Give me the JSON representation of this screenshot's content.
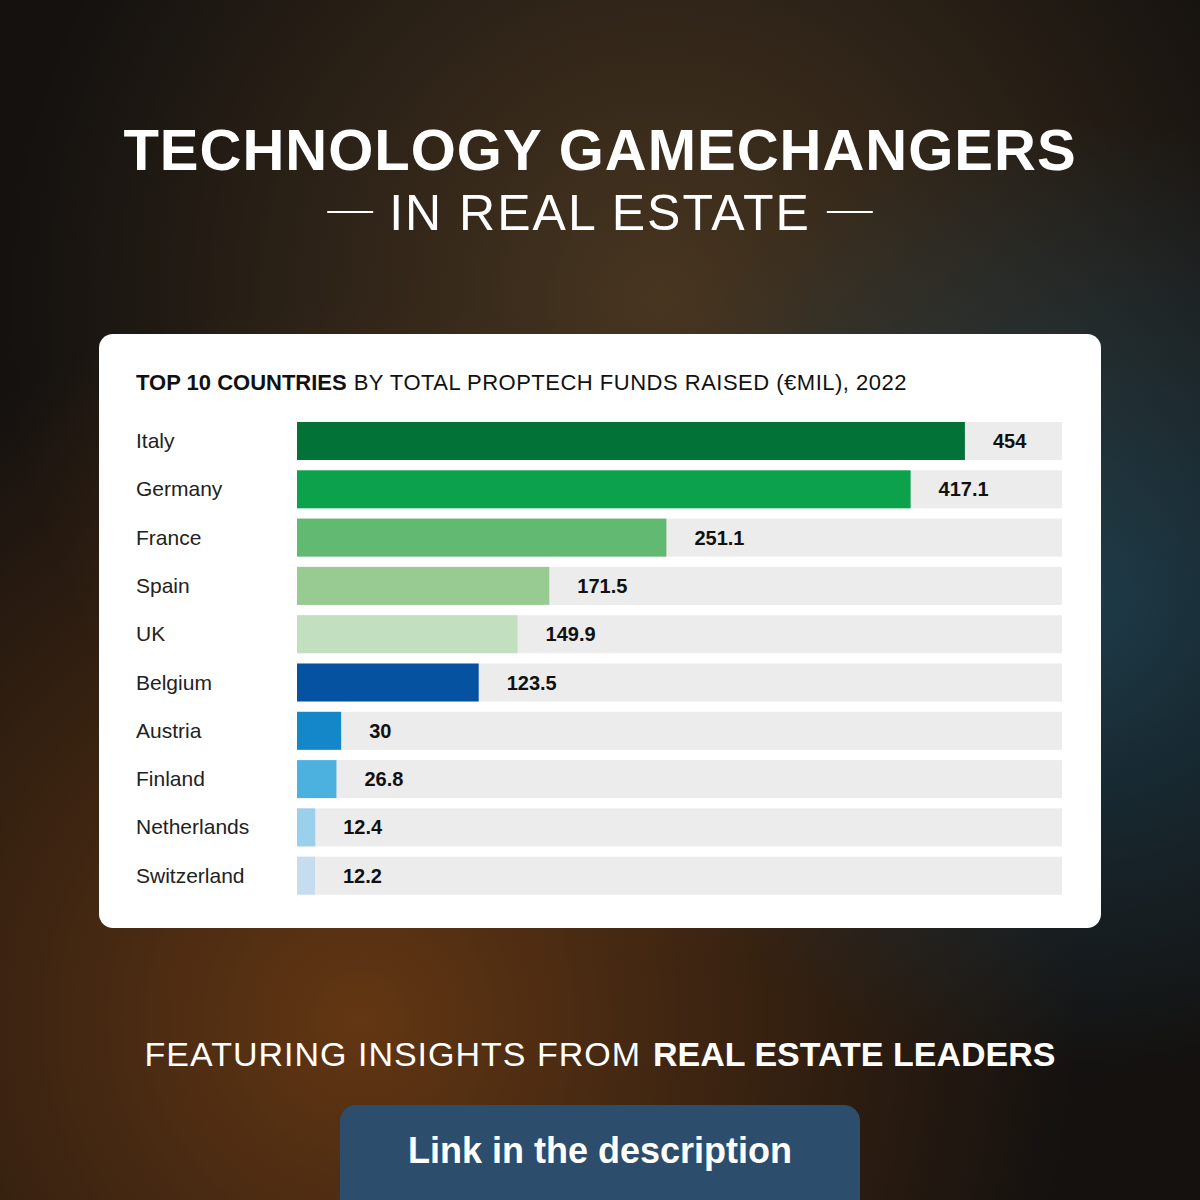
{
  "header": {
    "title": "TECHNOLOGY GAMECHANGERS",
    "subtitle": "IN REAL ESTATE"
  },
  "chart_data": {
    "type": "bar",
    "orientation": "horizontal",
    "title": "TOP 10 COUNTRIES BY TOTAL PROPTECH FUNDS RAISED (€MIL), 2022",
    "categories": [
      "Italy",
      "Germany",
      "France",
      "Spain",
      "UK",
      "Belgium",
      "Austria",
      "Finland",
      "Netherlands",
      "Switzerland"
    ],
    "values": [
      454,
      417.1,
      251.1,
      171.5,
      149.9,
      123.5,
      30,
      26.8,
      12.4,
      12.2
    ],
    "colors": [
      "#037236",
      "#0ca24c",
      "#62b971",
      "#98cb91",
      "#c2e0bf",
      "#0552a0",
      "#1387c8",
      "#4db1e0",
      "#9bd0ec",
      "#c6ddf0"
    ],
    "xlim": [
      0,
      520
    ],
    "data_labels": true,
    "tick_labels": false,
    "grid": false
  },
  "footer": {
    "lead": "FEATURING INSIGHTS FROM",
    "emphasis": "REAL ESTATE LEADERS",
    "button": "Link in the description"
  }
}
